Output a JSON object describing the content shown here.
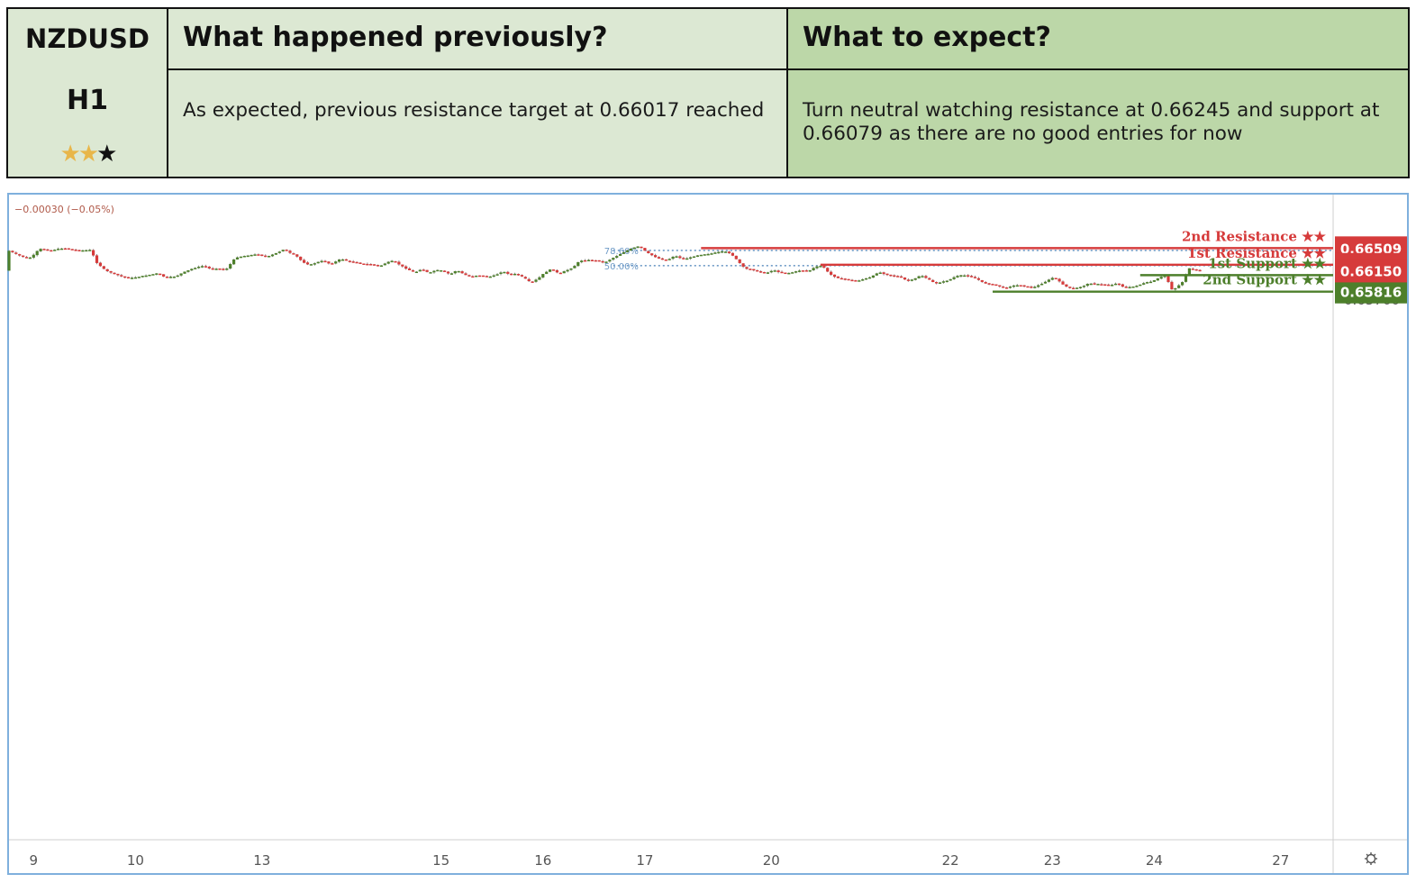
{
  "header": {
    "pair": "NZDUSD",
    "timeframe": "H1",
    "rating": {
      "filled": 2,
      "total": 3
    },
    "prev_title": "What happened previously?",
    "prev_text": "As expected, previous resistance target at 0.66017 reached",
    "next_title": "What to expect?",
    "next_text": "Turn neutral watching resistance at 0.66245 and support at 0.66079 as there are no good entries for now"
  },
  "chart_data": {
    "type": "line",
    "subtype": "candlestick",
    "change_text": "−0.00030 (−0.05%)",
    "ylim": [
      0.6563,
      0.6666
    ],
    "yticks": [
      0.666,
      0.664,
      0.663,
      0.662,
      0.661,
      0.66,
      0.659,
      0.658,
      0.657
    ],
    "ytick_labels": [
      "0.66600",
      "0.66400",
      "0.66300",
      "0.66200",
      "0.66100",
      "0.66000",
      "0.65900",
      "0.65800",
      "0.65700"
    ],
    "xticks": [
      {
        "label": "9",
        "bar": 7
      },
      {
        "label": "10",
        "bar": 36
      },
      {
        "label": "13",
        "bar": 72
      },
      {
        "label": "15",
        "bar": 123
      },
      {
        "label": "16",
        "bar": 152
      },
      {
        "label": "17",
        "bar": 181
      },
      {
        "label": "20",
        "bar": 217
      },
      {
        "label": "22",
        "bar": 268
      },
      {
        "label": "23",
        "bar": 297
      },
      {
        "label": "24",
        "bar": 326
      },
      {
        "label": "27",
        "bar": 362
      }
    ],
    "x_bar_range": [
      0,
      380
    ],
    "price_path": [
      [
        0,
        0.6648
      ],
      [
        3,
        0.664
      ],
      [
        6,
        0.6634
      ],
      [
        8,
        0.6642
      ],
      [
        9,
        0.665
      ],
      [
        12,
        0.6647
      ],
      [
        16,
        0.6651
      ],
      [
        20,
        0.6647
      ],
      [
        24,
        0.6648
      ],
      [
        25,
        0.663
      ],
      [
        28,
        0.6615
      ],
      [
        31,
        0.6609
      ],
      [
        33,
        0.6605
      ],
      [
        35,
        0.6603
      ],
      [
        37,
        0.6605
      ],
      [
        40,
        0.6608
      ],
      [
        43,
        0.6611
      ],
      [
        45,
        0.6604
      ],
      [
        48,
        0.6606
      ],
      [
        50,
        0.6612
      ],
      [
        53,
        0.6619
      ],
      [
        56,
        0.6623
      ],
      [
        58,
        0.6617
      ],
      [
        60,
        0.6619
      ],
      [
        62,
        0.6615
      ],
      [
        65,
        0.6636
      ],
      [
        68,
        0.6639
      ],
      [
        71,
        0.6641
      ],
      [
        74,
        0.6637
      ],
      [
        77,
        0.6644
      ],
      [
        79,
        0.665
      ],
      [
        80,
        0.6644
      ],
      [
        82,
        0.664
      ],
      [
        84,
        0.6629
      ],
      [
        86,
        0.6624
      ],
      [
        88,
        0.6628
      ],
      [
        90,
        0.6631
      ],
      [
        92,
        0.6625
      ],
      [
        95,
        0.6634
      ],
      [
        97,
        0.663
      ],
      [
        99,
        0.6628
      ],
      [
        101,
        0.6626
      ],
      [
        104,
        0.6625
      ],
      [
        106,
        0.6622
      ],
      [
        108,
        0.6628
      ],
      [
        110,
        0.6631
      ],
      [
        112,
        0.6623
      ],
      [
        114,
        0.6617
      ],
      [
        116,
        0.6612
      ],
      [
        118,
        0.6618
      ],
      [
        120,
        0.6611
      ],
      [
        122,
        0.6616
      ],
      [
        124,
        0.6615
      ],
      [
        126,
        0.6609
      ],
      [
        128,
        0.6616
      ],
      [
        130,
        0.6609
      ],
      [
        132,
        0.6605
      ],
      [
        134,
        0.6608
      ],
      [
        137,
        0.6605
      ],
      [
        139,
        0.6608
      ],
      [
        141,
        0.6614
      ],
      [
        143,
        0.6609
      ],
      [
        145,
        0.661
      ],
      [
        147,
        0.6604
      ],
      [
        149,
        0.6596
      ],
      [
        151,
        0.6602
      ],
      [
        153,
        0.6612
      ],
      [
        155,
        0.6618
      ],
      [
        157,
        0.661
      ],
      [
        159,
        0.6615
      ],
      [
        161,
        0.662
      ],
      [
        163,
        0.6631
      ],
      [
        166,
        0.6632
      ],
      [
        168,
        0.6631
      ],
      [
        170,
        0.6628
      ],
      [
        172,
        0.6634
      ],
      [
        174,
        0.664
      ],
      [
        176,
        0.6646
      ],
      [
        178,
        0.6651
      ],
      [
        180,
        0.6654
      ],
      [
        182,
        0.6644
      ],
      [
        184,
        0.6638
      ],
      [
        186,
        0.6633
      ],
      [
        188,
        0.6632
      ],
      [
        190,
        0.6639
      ],
      [
        192,
        0.6634
      ],
      [
        194,
        0.6635
      ],
      [
        196,
        0.6639
      ],
      [
        198,
        0.6641
      ],
      [
        200,
        0.6642
      ],
      [
        202,
        0.6644
      ],
      [
        204,
        0.6646
      ],
      [
        206,
        0.6642
      ],
      [
        208,
        0.663
      ],
      [
        210,
        0.6618
      ],
      [
        212,
        0.6617
      ],
      [
        214,
        0.6613
      ],
      [
        216,
        0.6611
      ],
      [
        218,
        0.6616
      ],
      [
        220,
        0.6612
      ],
      [
        222,
        0.6611
      ],
      [
        224,
        0.6613
      ],
      [
        226,
        0.6616
      ],
      [
        228,
        0.6614
      ],
      [
        230,
        0.6621
      ],
      [
        232,
        0.6623
      ],
      [
        234,
        0.661
      ],
      [
        236,
        0.6604
      ],
      [
        238,
        0.6602
      ],
      [
        240,
        0.66
      ],
      [
        242,
        0.6599
      ],
      [
        244,
        0.6602
      ],
      [
        246,
        0.6605
      ],
      [
        248,
        0.6613
      ],
      [
        250,
        0.6609
      ],
      [
        252,
        0.6607
      ],
      [
        254,
        0.6606
      ],
      [
        256,
        0.6599
      ],
      [
        258,
        0.6601
      ],
      [
        260,
        0.6608
      ],
      [
        262,
        0.6602
      ],
      [
        264,
        0.6595
      ],
      [
        266,
        0.6597
      ],
      [
        268,
        0.66
      ],
      [
        270,
        0.6606
      ],
      [
        272,
        0.6608
      ],
      [
        274,
        0.6606
      ],
      [
        276,
        0.6602
      ],
      [
        278,
        0.6595
      ],
      [
        280,
        0.6594
      ],
      [
        282,
        0.6591
      ],
      [
        284,
        0.6587
      ],
      [
        286,
        0.6591
      ],
      [
        288,
        0.6592
      ],
      [
        290,
        0.659
      ],
      [
        292,
        0.6588
      ],
      [
        294,
        0.6593
      ],
      [
        296,
        0.6599
      ],
      [
        298,
        0.6605
      ],
      [
        300,
        0.6595
      ],
      [
        302,
        0.6588
      ],
      [
        304,
        0.6587
      ],
      [
        306,
        0.659
      ],
      [
        308,
        0.6595
      ],
      [
        310,
        0.6594
      ],
      [
        312,
        0.6593
      ],
      [
        314,
        0.6592
      ],
      [
        316,
        0.6595
      ],
      [
        318,
        0.6588
      ],
      [
        320,
        0.6589
      ],
      [
        322,
        0.6592
      ],
      [
        324,
        0.6596
      ],
      [
        326,
        0.6598
      ],
      [
        328,
        0.6604
      ],
      [
        330,
        0.6608
      ],
      [
        331,
        0.6586
      ],
      [
        332,
        0.6585
      ],
      [
        334,
        0.6594
      ],
      [
        335,
        0.66
      ],
      [
        336,
        0.6619
      ],
      [
        338,
        0.6617
      ],
      [
        339,
        0.6615
      ]
    ],
    "levels": [
      {
        "name": "2nd Resistance",
        "label": "2nd Resistance ★★",
        "value": 0.66509,
        "value_label": "0.66509",
        "from_bar": 197,
        "color": "#d63b3b"
      },
      {
        "name": "1st Resistance",
        "label": "1st Resistance ★★",
        "value": 0.66245,
        "value_label": "0.66245",
        "from_bar": 231,
        "color": "#d63b3b"
      },
      {
        "name": "1st Support",
        "label": "1st Support ★★",
        "value": 0.66079,
        "value_label": "0.66079",
        "from_bar": 322,
        "color": "#4d7f2b"
      },
      {
        "name": "2nd Support",
        "label": "2nd Support ★★",
        "value": 0.65816,
        "value_label": "0.65816",
        "from_bar": 280,
        "color": "#4d7f2b"
      }
    ],
    "current_price": {
      "value": 0.6615,
      "value_label": "0.66150",
      "color": "#d63b3b"
    },
    "fibonacci": [
      {
        "label": "78.60%",
        "value": 0.66472,
        "from_bar": 172
      },
      {
        "label": "50.00%",
        "value": 0.6623,
        "from_bar": 172
      }
    ],
    "resistance_zone": {
      "from": 0.66472,
      "to": 0.66509,
      "from_bar": 197
    },
    "colors": {
      "up": "#4d7f2b",
      "down": "#d63b3b",
      "wick": "#8a8a8a",
      "fib": "#6f9bc7",
      "zone": "#f9e3e3"
    },
    "gear_icon": "gear-icon"
  }
}
